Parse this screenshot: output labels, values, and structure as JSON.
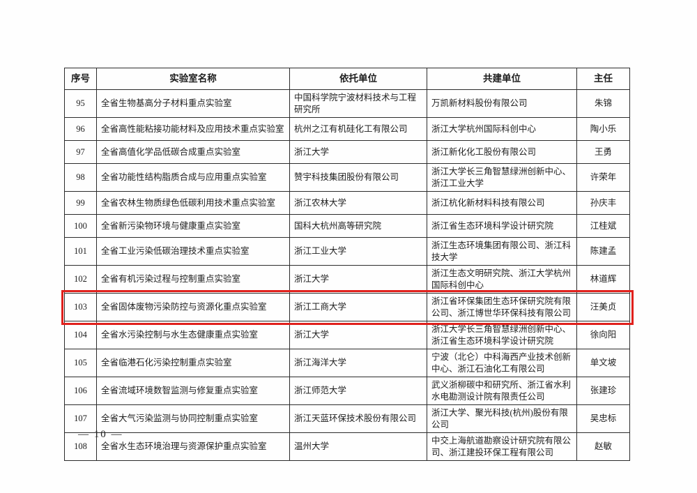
{
  "page": {
    "page_number": "— 10 —"
  },
  "table": {
    "headers": [
      "序号",
      "实验室名称",
      "依托单位",
      "共建单位",
      "主任"
    ],
    "highlight_color": "#e0201c",
    "rows": [
      {
        "no": "95",
        "lab": "全省生物基高分子材料重点实验室",
        "host": "中国科学院宁波材料技术与工程研究所",
        "partner": "万凯新材料股份有限公司",
        "director": "朱锦",
        "highlighted": false
      },
      {
        "no": "96",
        "lab": "全省高性能粘接功能材料及应用技术重点实验室",
        "host": "杭州之江有机硅化工有限公司",
        "partner": "浙江大学杭州国际科创中心",
        "director": "陶小乐",
        "highlighted": false
      },
      {
        "no": "97",
        "lab": "全省高值化学品低碳合成重点实验室",
        "host": "浙江大学",
        "partner": "浙江新化化工股份有限公司",
        "director": "王勇",
        "highlighted": false
      },
      {
        "no": "98",
        "lab": "全省功能性结构脂质合成与应用重点实验室",
        "host": "赞宇科技集团股份有限公司",
        "partner": "浙江大学长三角智慧绿洲创新中心、浙江工业大学",
        "director": "许荣年",
        "highlighted": false
      },
      {
        "no": "99",
        "lab": "全省农林生物质绿色低碳利用技术重点实验室",
        "host": "浙江农林大学",
        "partner": "浙江杭化新材料科技有限公司",
        "director": "孙庆丰",
        "highlighted": false
      },
      {
        "no": "100",
        "lab": "全省新污染物环境与健康重点实验室",
        "host": "国科大杭州高等研究院",
        "partner": "浙江省生态环境科学设计研究院",
        "director": "江桂斌",
        "highlighted": false
      },
      {
        "no": "101",
        "lab": "全省工业污染低碳治理技术重点实验室",
        "host": "浙江工业大学",
        "partner": "浙江生态环境集团有限公司、浙江科技大学",
        "director": "陈建孟",
        "highlighted": false
      },
      {
        "no": "102",
        "lab": "全省有机污染过程与控制重点实验室",
        "host": "浙江大学",
        "partner": "浙江生态文明研究院、浙江大学杭州国际科创中心",
        "director": "林道辉",
        "highlighted": false
      },
      {
        "no": "103",
        "lab": "全省固体废物污染防控与资源化重点实验室",
        "host": "浙江工商大学",
        "partner": "浙江省环保集团生态环保研究院有限公司、浙江博世华环保科技有限公司",
        "director": "汪美贞",
        "highlighted": true
      },
      {
        "no": "104",
        "lab": "全省水污染控制与水生态健康重点实验室",
        "host": "浙江大学",
        "partner": "浙江大学长三角智慧绿洲创新中心、浙江省生态环境科学设计研究院",
        "director": "徐向阳",
        "highlighted": false
      },
      {
        "no": "105",
        "lab": "全省临港石化污染控制重点实验室",
        "host": "浙江海洋大学",
        "partner": "宁波（北仑）中科海西产业技术创新中心、浙江石油化工有限公司",
        "director": "单文坡",
        "highlighted": false
      },
      {
        "no": "106",
        "lab": "全省流域环境数智监测与修复重点实验室",
        "host": "浙江师范大学",
        "partner": "武义浙柳碳中和研究所、浙江省水利水电勘测设计院有限责任公司",
        "director": "张建珍",
        "highlighted": false
      },
      {
        "no": "107",
        "lab": "全省大气污染监测与协同控制重点实验室",
        "host": "浙江天蓝环保技术股份有限公司",
        "partner": "浙江大学、聚光科技(杭州)股份有限公司",
        "director": "吴忠标",
        "highlighted": false
      },
      {
        "no": "108",
        "lab": "全省水生态环境治理与资源保护重点实验室",
        "host": "温州大学",
        "partner": "中交上海航道勘察设计研究院有限公司、浙江建投环保工程有限公司",
        "director": "赵敏",
        "highlighted": false
      }
    ]
  }
}
